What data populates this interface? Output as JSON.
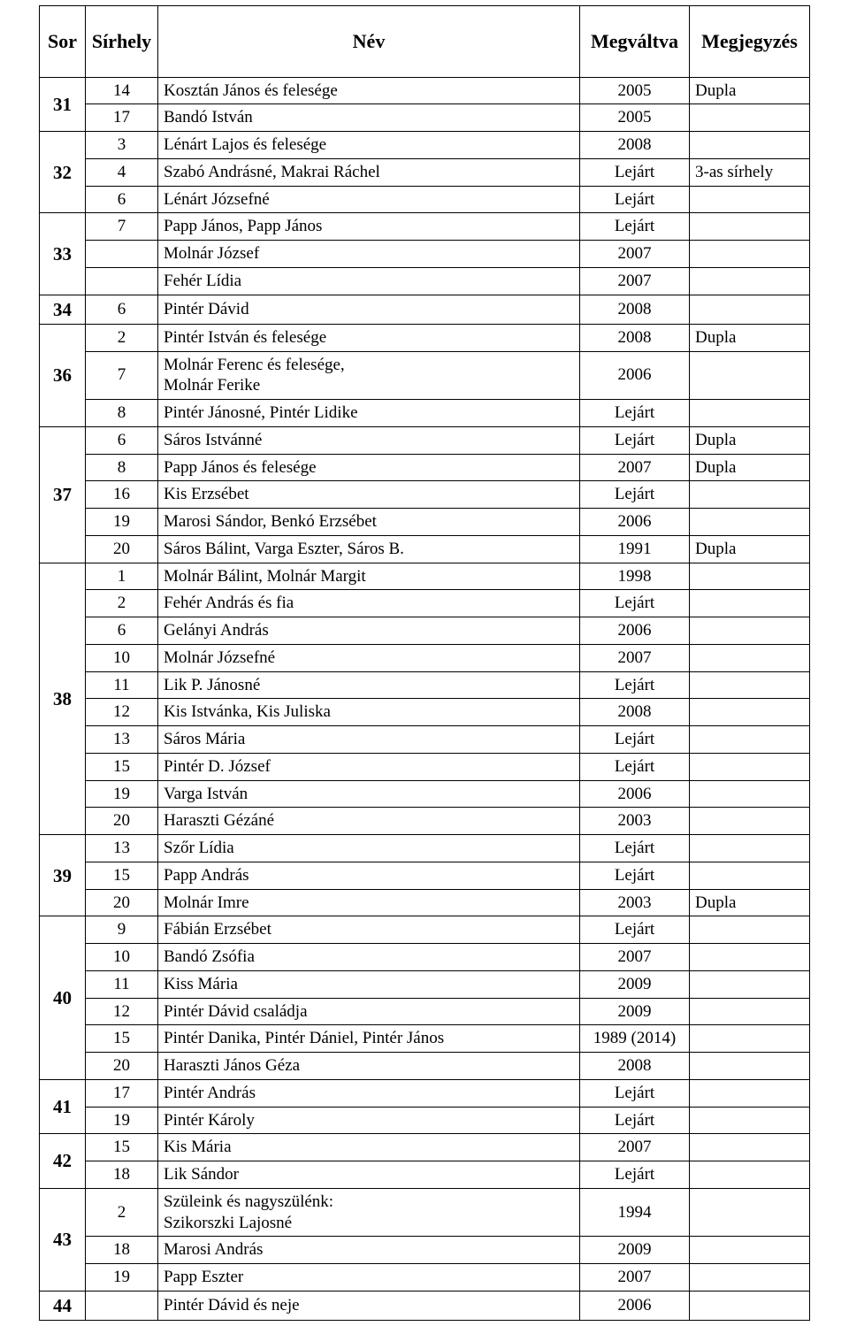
{
  "columns": [
    "Sor",
    "Sírhely",
    "Név",
    "Megváltva",
    "Megjegyzés"
  ],
  "groups": [
    {
      "sor": "31",
      "rows": [
        {
          "sirhely": "14",
          "nev": "Kosztán János és felesége",
          "megvaltva": "2005",
          "megjegyzes": "Dupla"
        },
        {
          "sirhely": "17",
          "nev": "Bandó István",
          "megvaltva": "2005",
          "megjegyzes": ""
        }
      ]
    },
    {
      "sor": "32",
      "rows": [
        {
          "sirhely": "3",
          "nev": "Lénárt Lajos és felesége",
          "megvaltva": "2008",
          "megjegyzes": ""
        },
        {
          "sirhely": "4",
          "nev": "Szabó Andrásné, Makrai Ráchel",
          "megvaltva": "Lejárt",
          "megjegyzes": "3-as sírhely"
        },
        {
          "sirhely": "6",
          "nev": "Lénárt Józsefné",
          "megvaltva": "Lejárt",
          "megjegyzes": ""
        }
      ]
    },
    {
      "sor": "33",
      "rows": [
        {
          "sirhely": "7",
          "nev": "Papp János, Papp János",
          "megvaltva": "Lejárt",
          "megjegyzes": ""
        },
        {
          "sirhely": "",
          "nev": "Molnár József",
          "megvaltva": "2007",
          "megjegyzes": ""
        },
        {
          "sirhely": "",
          "nev": "Fehér Lídia",
          "megvaltva": "2007",
          "megjegyzes": ""
        }
      ]
    },
    {
      "sor": "34",
      "rows": [
        {
          "sirhely": "6",
          "nev": "Pintér Dávid",
          "megvaltva": "2008",
          "megjegyzes": ""
        }
      ]
    },
    {
      "sor": "36",
      "rows": [
        {
          "sirhely": "2",
          "nev": "Pintér István és felesége",
          "megvaltva": "2008",
          "megjegyzes": "Dupla"
        },
        {
          "sirhely": "7",
          "nev": "Molnár Ferenc és felesége,\nMolnár Ferike",
          "megvaltva": "2006",
          "megjegyzes": ""
        },
        {
          "sirhely": "8",
          "nev": "Pintér Jánosné, Pintér Lidike",
          "megvaltva": "Lejárt",
          "megjegyzes": ""
        }
      ]
    },
    {
      "sor": "37",
      "rows": [
        {
          "sirhely": "6",
          "nev": "Sáros Istvánné",
          "megvaltva": "Lejárt",
          "megjegyzes": "Dupla"
        },
        {
          "sirhely": "8",
          "nev": "Papp János és felesége",
          "megvaltva": "2007",
          "megjegyzes": "Dupla"
        },
        {
          "sirhely": "16",
          "nev": "Kis Erzsébet",
          "megvaltva": "Lejárt",
          "megjegyzes": ""
        },
        {
          "sirhely": "19",
          "nev": "Marosi Sándor, Benkó Erzsébet",
          "megvaltva": "2006",
          "megjegyzes": ""
        },
        {
          "sirhely": "20",
          "nev": "Sáros Bálint, Varga Eszter, Sáros B.",
          "megvaltva": "1991",
          "megjegyzes": "Dupla"
        }
      ]
    },
    {
      "sor": "38",
      "rows": [
        {
          "sirhely": "1",
          "nev": "Molnár Bálint, Molnár Margit",
          "megvaltva": "1998",
          "megjegyzes": ""
        },
        {
          "sirhely": "2",
          "nev": "Fehér András és fia",
          "megvaltva": "Lejárt",
          "megjegyzes": ""
        },
        {
          "sirhely": "6",
          "nev": "Gelányi András",
          "megvaltva": "2006",
          "megjegyzes": ""
        },
        {
          "sirhely": "10",
          "nev": "Molnár Józsefné",
          "megvaltva": "2007",
          "megjegyzes": ""
        },
        {
          "sirhely": "11",
          "nev": "Lik P. Jánosné",
          "megvaltva": "Lejárt",
          "megjegyzes": ""
        },
        {
          "sirhely": "12",
          "nev": "Kis Istvánka, Kis Juliska",
          "megvaltva": "2008",
          "megjegyzes": ""
        },
        {
          "sirhely": "13",
          "nev": "Sáros Mária",
          "megvaltva": "Lejárt",
          "megjegyzes": ""
        },
        {
          "sirhely": "15",
          "nev": "Pintér D. József",
          "megvaltva": "Lejárt",
          "megjegyzes": ""
        },
        {
          "sirhely": "19",
          "nev": "Varga István",
          "megvaltva": "2006",
          "megjegyzes": ""
        },
        {
          "sirhely": "20",
          "nev": "Haraszti Gézáné",
          "megvaltva": "2003",
          "megjegyzes": ""
        }
      ]
    },
    {
      "sor": "39",
      "rows": [
        {
          "sirhely": "13",
          "nev": "Szőr Lídia",
          "megvaltva": "Lejárt",
          "megjegyzes": ""
        },
        {
          "sirhely": "15",
          "nev": "Papp András",
          "megvaltva": "Lejárt",
          "megjegyzes": ""
        },
        {
          "sirhely": "20",
          "nev": "Molnár Imre",
          "megvaltva": "2003",
          "megjegyzes": "Dupla"
        }
      ]
    },
    {
      "sor": "40",
      "rows": [
        {
          "sirhely": "9",
          "nev": "Fábián Erzsébet",
          "megvaltva": "Lejárt",
          "megjegyzes": ""
        },
        {
          "sirhely": "10",
          "nev": "Bandó Zsófia",
          "megvaltva": "2007",
          "megjegyzes": ""
        },
        {
          "sirhely": "11",
          "nev": "Kiss Mária",
          "megvaltva": "2009",
          "megjegyzes": ""
        },
        {
          "sirhely": "12",
          "nev": "Pintér Dávid családja",
          "megvaltva": "2009",
          "megjegyzes": ""
        },
        {
          "sirhely": "15",
          "nev": "Pintér Danika, Pintér Dániel, Pintér János",
          "megvaltva": "1989 (2014)",
          "megjegyzes": ""
        },
        {
          "sirhely": "20",
          "nev": "Haraszti János Géza",
          "megvaltva": "2008",
          "megjegyzes": ""
        }
      ]
    },
    {
      "sor": "41",
      "rows": [
        {
          "sirhely": "17",
          "nev": "Pintér András",
          "megvaltva": "Lejárt",
          "megjegyzes": ""
        },
        {
          "sirhely": "19",
          "nev": "Pintér Károly",
          "megvaltva": "Lejárt",
          "megjegyzes": ""
        }
      ]
    },
    {
      "sor": "42",
      "rows": [
        {
          "sirhely": "15",
          "nev": "Kis Mária",
          "megvaltva": "2007",
          "megjegyzes": ""
        },
        {
          "sirhely": "18",
          "nev": "Lik Sándor",
          "megvaltva": "Lejárt",
          "megjegyzes": ""
        }
      ]
    },
    {
      "sor": "43",
      "rows": [
        {
          "sirhely": "2",
          "nev": "Szüleink és nagyszülénk:\nSzikorszki Lajosné",
          "megvaltva": "1994",
          "megjegyzes": ""
        },
        {
          "sirhely": "18",
          "nev": "Marosi András",
          "megvaltva": "2009",
          "megjegyzes": ""
        },
        {
          "sirhely": "19",
          "nev": "Papp Eszter",
          "megvaltva": "2007",
          "megjegyzes": ""
        }
      ]
    },
    {
      "sor": "44",
      "rows": [
        {
          "sirhely": "",
          "nev": "Pintér Dávid és neje",
          "megvaltva": "2006",
          "megjegyzes": ""
        }
      ]
    }
  ]
}
